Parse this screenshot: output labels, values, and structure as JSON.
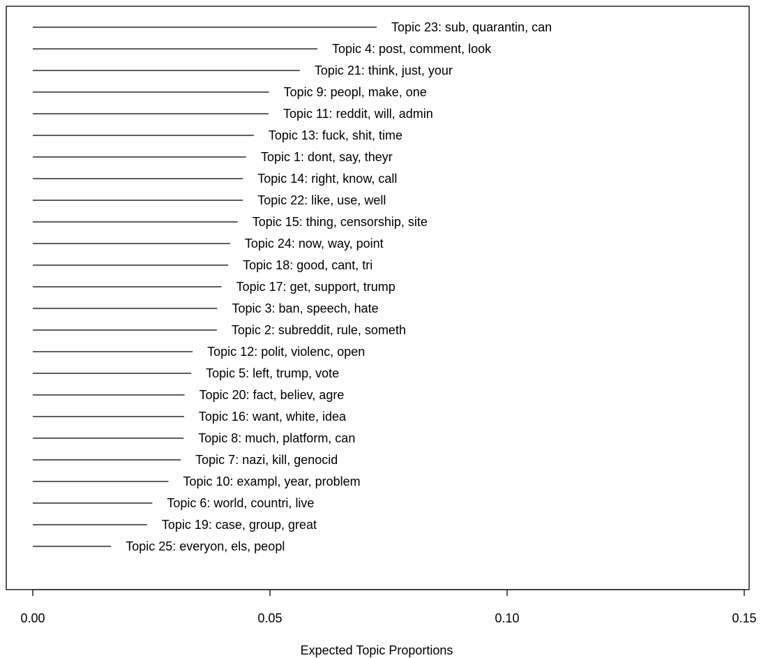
{
  "chart_data": {
    "type": "bar",
    "orientation": "horizontal",
    "style": "lines-with-labels",
    "title": "",
    "xlabel": "Expected Topic Proportions",
    "ylabel": "",
    "xlim": [
      0,
      0.15
    ],
    "x_ticks": [
      "0.00",
      "0.05",
      "0.10",
      "0.15"
    ],
    "x_tick_values": [
      0,
      0.05,
      0.1,
      0.15
    ],
    "grid": false,
    "legend": "none",
    "line_color": "#000000",
    "categories": [
      "Topic 23: sub, quarantin, can",
      "Topic 4: post, comment, look",
      "Topic 21: think, just, your",
      "Topic 9: peopl, make, one",
      "Topic 11: reddit, will, admin",
      "Topic 13: fuck, shit, time",
      "Topic 1: dont, say, theyr",
      "Topic 14: right, know, call",
      "Topic 22: like, use, well",
      "Topic 15: thing, censorship, site",
      "Topic 24: now, way, point",
      "Topic 18: good, cant, tri",
      "Topic 17: get, support, trump",
      "Topic 3: ban, speech, hate",
      "Topic 2: subreddit, rule, someth",
      "Topic 12: polit, violenc, open",
      "Topic 5: left, trump, vote",
      "Topic 20: fact, believ, agre",
      "Topic 16: want, white, idea",
      "Topic 8: much, platform, can",
      "Topic 7: nazi, kill, genocid",
      "Topic 10: exampl, year, problem",
      "Topic 6: world, countri, live",
      "Topic 19: case, group, great",
      "Topic 25: everyon, els, peopl"
    ],
    "values": [
      0.0725,
      0.06,
      0.0563,
      0.0498,
      0.0497,
      0.0466,
      0.045,
      0.0443,
      0.0443,
      0.0432,
      0.0416,
      0.0412,
      0.0398,
      0.0389,
      0.0388,
      0.0337,
      0.0334,
      0.032,
      0.0319,
      0.0318,
      0.0312,
      0.0286,
      0.0252,
      0.0241,
      0.0165
    ]
  }
}
